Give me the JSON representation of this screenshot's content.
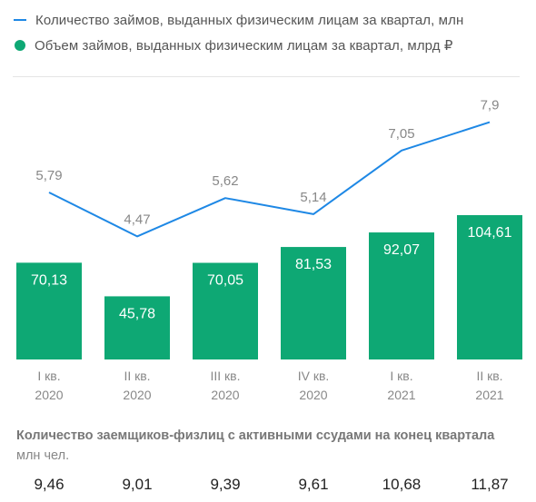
{
  "legend": {
    "line_label": "Количество займов, выданных физическим лицам за квартал, млн",
    "bar_label": "Объем займов, выданных физическим лицам за квартал, млрд ₽"
  },
  "colors": {
    "line": "#1e88e5",
    "bar": "#0ea874",
    "bar_text": "#ffffff"
  },
  "chart_data": {
    "type": "bar",
    "categories": [
      "I кв. 2020",
      "II кв. 2020",
      "III кв. 2020",
      "IV кв. 2020",
      "I кв. 2021",
      "II кв. 2021"
    ],
    "category_lines": [
      [
        "I кв.",
        "2020"
      ],
      [
        "II кв.",
        "2020"
      ],
      [
        "III кв.",
        "2020"
      ],
      [
        "IV кв.",
        "2020"
      ],
      [
        "I кв.",
        "2021"
      ],
      [
        "II кв.",
        "2021"
      ]
    ],
    "series": [
      {
        "name": "Объем займов, выданных физическим лицам за квартал, млрд ₽",
        "type": "bar",
        "values": [
          70.13,
          45.78,
          70.05,
          81.53,
          92.07,
          104.61
        ],
        "labels": [
          "70,13",
          "45,78",
          "70,05",
          "81,53",
          "92,07",
          "104,61"
        ]
      },
      {
        "name": "Количество займов, выданных физическим лицам за квартал, млн",
        "type": "line",
        "values": [
          5.79,
          4.47,
          5.62,
          5.14,
          7.05,
          7.9
        ],
        "labels": [
          "5,79",
          "4,47",
          "5,62",
          "5,14",
          "7,05",
          "7,9"
        ]
      }
    ],
    "legend_position": "top-left",
    "grid": false
  },
  "footer": {
    "title": "Количество заемщиков-физлиц с активными ссудами на конец квартала",
    "unit": "млн чел.",
    "values": [
      "9,46",
      "9,01",
      "9,39",
      "9,61",
      "10,68",
      "11,87"
    ]
  }
}
